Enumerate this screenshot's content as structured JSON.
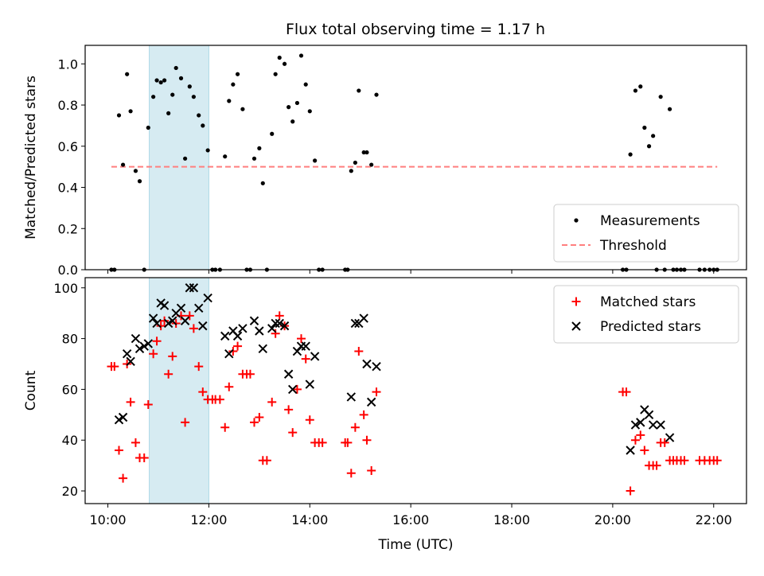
{
  "title": "Flux total observing time = 1.17 h",
  "colors": {
    "measurement": "#000000",
    "threshold": "#ff7f7f",
    "matched": "#ff0000",
    "predicted": "#000000",
    "highlight_fill": "#add8e6"
  },
  "chart_data": [
    {
      "type": "scatter",
      "ylabel": "Matched/Predicted stars",
      "xlabel": "",
      "xlim": [
        9.55,
        22.65
      ],
      "ylim": [
        0,
        1.09
      ],
      "yticks": [
        0.0,
        0.2,
        0.4,
        0.6,
        0.8,
        1.0
      ],
      "ytick_labels": [
        "0.0",
        "0.2",
        "0.4",
        "0.6",
        "0.8",
        "1.0"
      ],
      "highlight_span": [
        10.82,
        12.0
      ],
      "legend_position": "lower-right",
      "threshold": {
        "name": "Threshold",
        "y": 0.5,
        "x": [
          10.07,
          22.07
        ]
      },
      "series": [
        {
          "name": "Measurements",
          "marker": "dot",
          "points": [
            [
              10.07,
              0
            ],
            [
              10.13,
              0
            ],
            [
              10.22,
              0.75
            ],
            [
              10.3,
              0.51
            ],
            [
              10.38,
              0.95
            ],
            [
              10.45,
              0.77
            ],
            [
              10.55,
              0.48
            ],
            [
              10.63,
              0.43
            ],
            [
              10.72,
              0
            ],
            [
              10.8,
              0.69
            ],
            [
              10.9,
              0.84
            ],
            [
              10.97,
              0.92
            ],
            [
              11.05,
              0.91
            ],
            [
              11.12,
              0.92
            ],
            [
              11.2,
              0.76
            ],
            [
              11.28,
              0.85
            ],
            [
              11.35,
              0.98
            ],
            [
              11.45,
              0.93
            ],
            [
              11.53,
              0.54
            ],
            [
              11.62,
              0.89
            ],
            [
              11.7,
              0.84
            ],
            [
              11.8,
              0.75
            ],
            [
              11.88,
              0.7
            ],
            [
              11.98,
              0.58
            ],
            [
              12.07,
              0
            ],
            [
              12.13,
              0
            ],
            [
              12.22,
              0
            ],
            [
              12.32,
              0.55
            ],
            [
              12.4,
              0.82
            ],
            [
              12.48,
              0.9
            ],
            [
              12.57,
              0.95
            ],
            [
              12.67,
              0.78
            ],
            [
              12.75,
              0
            ],
            [
              12.82,
              0
            ],
            [
              12.9,
              0.54
            ],
            [
              13.0,
              0.59
            ],
            [
              13.07,
              0.42
            ],
            [
              13.15,
              0
            ],
            [
              13.25,
              0.66
            ],
            [
              13.32,
              0.95
            ],
            [
              13.4,
              1.03
            ],
            [
              13.5,
              1.0
            ],
            [
              13.58,
              0.79
            ],
            [
              13.66,
              0.72
            ],
            [
              13.75,
              0.81
            ],
            [
              13.83,
              1.04
            ],
            [
              13.92,
              0.9
            ],
            [
              14.0,
              0.77
            ],
            [
              14.1,
              0.53
            ],
            [
              14.18,
              0
            ],
            [
              14.25,
              0
            ],
            [
              14.7,
              0
            ],
            [
              14.75,
              0
            ],
            [
              14.82,
              0.48
            ],
            [
              14.9,
              0.52
            ],
            [
              14.97,
              0.87
            ],
            [
              15.07,
              0.57
            ],
            [
              15.13,
              0.57
            ],
            [
              15.22,
              0.51
            ],
            [
              15.32,
              0.85
            ],
            [
              20.2,
              0
            ],
            [
              20.27,
              0
            ],
            [
              20.35,
              0.56
            ],
            [
              20.45,
              0.87
            ],
            [
              20.55,
              0.89
            ],
            [
              20.63,
              0.69
            ],
            [
              20.72,
              0.6
            ],
            [
              20.8,
              0.65
            ],
            [
              20.87,
              0
            ],
            [
              20.95,
              0.84
            ],
            [
              21.03,
              0
            ],
            [
              21.13,
              0.78
            ],
            [
              21.2,
              0
            ],
            [
              21.27,
              0
            ],
            [
              21.35,
              0
            ],
            [
              21.42,
              0
            ],
            [
              21.72,
              0
            ],
            [
              21.82,
              0
            ],
            [
              21.92,
              0
            ],
            [
              22.0,
              0
            ],
            [
              22.07,
              0
            ]
          ]
        }
      ]
    },
    {
      "type": "scatter",
      "xlabel": "Time (UTC)",
      "ylabel": "Count",
      "xlim": [
        9.55,
        22.65
      ],
      "ylim": [
        15,
        104
      ],
      "xticks": [
        10,
        12,
        14,
        16,
        18,
        20,
        22
      ],
      "xtick_labels": [
        "10:00",
        "12:00",
        "14:00",
        "16:00",
        "18:00",
        "20:00",
        "22:00"
      ],
      "yticks": [
        20,
        40,
        60,
        80,
        100
      ],
      "ytick_labels": [
        "20",
        "40",
        "60",
        "80",
        "100"
      ],
      "highlight_span": [
        10.82,
        12.0
      ],
      "legend_position": "top-right",
      "series": [
        {
          "name": "Matched stars",
          "marker": "plus",
          "points": [
            [
              10.07,
              69
            ],
            [
              10.13,
              69
            ],
            [
              10.22,
              36
            ],
            [
              10.3,
              25
            ],
            [
              10.38,
              70
            ],
            [
              10.45,
              55
            ],
            [
              10.55,
              39
            ],
            [
              10.63,
              33
            ],
            [
              10.72,
              33
            ],
            [
              10.8,
              54
            ],
            [
              10.9,
              74
            ],
            [
              10.97,
              79
            ],
            [
              11.05,
              85
            ],
            [
              11.12,
              87
            ],
            [
              11.2,
              66
            ],
            [
              11.28,
              73
            ],
            [
              11.35,
              86
            ],
            [
              11.45,
              89
            ],
            [
              11.53,
              47
            ],
            [
              11.62,
              89
            ],
            [
              11.7,
              84
            ],
            [
              11.8,
              69
            ],
            [
              11.88,
              59
            ],
            [
              11.98,
              56
            ],
            [
              12.07,
              56
            ],
            [
              12.13,
              56
            ],
            [
              12.22,
              56
            ],
            [
              12.32,
              45
            ],
            [
              12.4,
              61
            ],
            [
              12.48,
              75
            ],
            [
              12.57,
              77
            ],
            [
              12.67,
              66
            ],
            [
              12.75,
              66
            ],
            [
              12.82,
              66
            ],
            [
              12.9,
              47
            ],
            [
              13.0,
              49
            ],
            [
              13.07,
              32
            ],
            [
              13.15,
              32
            ],
            [
              13.25,
              55
            ],
            [
              13.32,
              82
            ],
            [
              13.4,
              89
            ],
            [
              13.5,
              85
            ],
            [
              13.58,
              52
            ],
            [
              13.66,
              43
            ],
            [
              13.75,
              60
            ],
            [
              13.83,
              80
            ],
            [
              13.92,
              72
            ],
            [
              14.0,
              48
            ],
            [
              14.1,
              39
            ],
            [
              14.18,
              39
            ],
            [
              14.25,
              39
            ],
            [
              14.7,
              39
            ],
            [
              14.75,
              39
            ],
            [
              14.82,
              27
            ],
            [
              14.9,
              45
            ],
            [
              14.97,
              75
            ],
            [
              15.07,
              50
            ],
            [
              15.13,
              40
            ],
            [
              15.22,
              28
            ],
            [
              15.32,
              59
            ],
            [
              20.2,
              59
            ],
            [
              20.27,
              59
            ],
            [
              20.35,
              20
            ],
            [
              20.45,
              40
            ],
            [
              20.55,
              42
            ],
            [
              20.63,
              36
            ],
            [
              20.72,
              30
            ],
            [
              20.8,
              30
            ],
            [
              20.87,
              30
            ],
            [
              20.95,
              39
            ],
            [
              21.03,
              39
            ],
            [
              21.13,
              32
            ],
            [
              21.2,
              32
            ],
            [
              21.27,
              32
            ],
            [
              21.35,
              32
            ],
            [
              21.42,
              32
            ],
            [
              21.72,
              32
            ],
            [
              21.82,
              32
            ],
            [
              21.92,
              32
            ],
            [
              22.0,
              32
            ],
            [
              22.07,
              32
            ]
          ]
        },
        {
          "name": "Predicted stars",
          "marker": "x",
          "points": [
            [
              10.22,
              48
            ],
            [
              10.3,
              49
            ],
            [
              10.38,
              74
            ],
            [
              10.45,
              71
            ],
            [
              10.55,
              80
            ],
            [
              10.63,
              76
            ],
            [
              10.72,
              77
            ],
            [
              10.8,
              78
            ],
            [
              10.9,
              88
            ],
            [
              10.97,
              86
            ],
            [
              11.05,
              94
            ],
            [
              11.12,
              93
            ],
            [
              11.2,
              86
            ],
            [
              11.28,
              87
            ],
            [
              11.35,
              90
            ],
            [
              11.45,
              92
            ],
            [
              11.53,
              87
            ],
            [
              11.62,
              100
            ],
            [
              11.7,
              100
            ],
            [
              11.8,
              92
            ],
            [
              11.88,
              85
            ],
            [
              11.98,
              96
            ],
            [
              12.32,
              81
            ],
            [
              12.4,
              74
            ],
            [
              12.48,
              83
            ],
            [
              12.57,
              81
            ],
            [
              12.67,
              84
            ],
            [
              12.9,
              87
            ],
            [
              13.0,
              83
            ],
            [
              13.07,
              76
            ],
            [
              13.25,
              84
            ],
            [
              13.32,
              86
            ],
            [
              13.4,
              86
            ],
            [
              13.5,
              85
            ],
            [
              13.58,
              66
            ],
            [
              13.66,
              60
            ],
            [
              13.75,
              75
            ],
            [
              13.83,
              77
            ],
            [
              13.92,
              77
            ],
            [
              14.0,
              62
            ],
            [
              14.1,
              73
            ],
            [
              14.82,
              57
            ],
            [
              14.9,
              86
            ],
            [
              14.97,
              86
            ],
            [
              15.07,
              88
            ],
            [
              15.13,
              70
            ],
            [
              15.22,
              55
            ],
            [
              15.32,
              69
            ],
            [
              20.35,
              36
            ],
            [
              20.45,
              46
            ],
            [
              20.55,
              47
            ],
            [
              20.63,
              52
            ],
            [
              20.72,
              50
            ],
            [
              20.8,
              46
            ],
            [
              20.95,
              46
            ],
            [
              21.13,
              41
            ]
          ]
        }
      ]
    }
  ]
}
